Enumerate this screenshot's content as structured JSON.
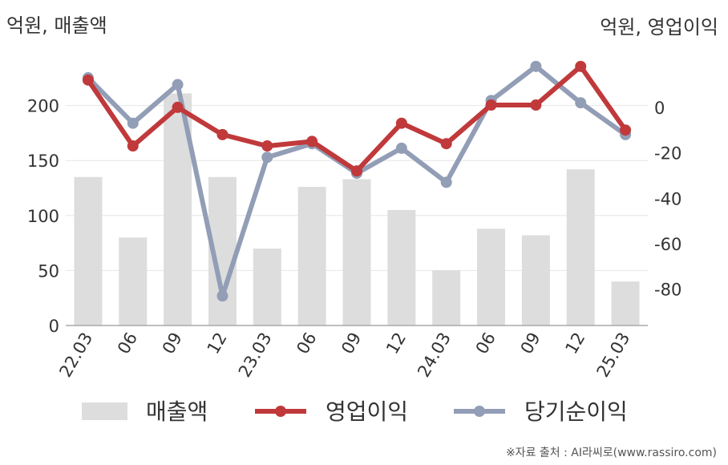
{
  "chart_data": {
    "type": "bar",
    "left_unit": "억원, 매출액",
    "right_unit": "억원, 영업이익",
    "categories": [
      "22.03",
      "06",
      "09",
      "12",
      "23.03",
      "06",
      "09",
      "12",
      "24.03",
      "06",
      "09",
      "12",
      "25.03"
    ],
    "left_axis": {
      "ylim": [
        0,
        250
      ],
      "ticks": [
        "0",
        "50",
        "100",
        "150",
        "200"
      ],
      "tick_values": [
        0,
        50,
        100,
        150,
        200
      ]
    },
    "right_axis": {
      "ylim": [
        -96,
        25
      ],
      "ticks": [
        "0",
        "-20",
        "-40",
        "-60",
        "-80"
      ],
      "tick_values": [
        0,
        -20,
        -40,
        -60,
        -80
      ]
    },
    "grid": true,
    "legend_position": "bottom",
    "series": [
      {
        "name": "매출액",
        "kind": "bar",
        "axis": "left",
        "color": "#dddddd",
        "values": [
          135,
          80,
          211,
          135,
          70,
          126,
          133,
          105,
          50,
          88,
          82,
          142,
          40
        ]
      },
      {
        "name": "영업이익",
        "kind": "line",
        "axis": "right",
        "color": "#c0393b",
        "values": [
          12,
          -17,
          0,
          -12,
          -17,
          -15,
          -28,
          -7,
          -16,
          1,
          1,
          18,
          -10
        ]
      },
      {
        "name": "당기순이익",
        "kind": "line",
        "axis": "right",
        "color": "#929db6",
        "values": [
          13,
          -7,
          10,
          -83,
          -22,
          -16,
          -29,
          -18,
          -33,
          3,
          18,
          2,
          -12
        ]
      }
    ]
  },
  "source": "※자료 출처 : AI라씨로(www.rassiro.com)"
}
